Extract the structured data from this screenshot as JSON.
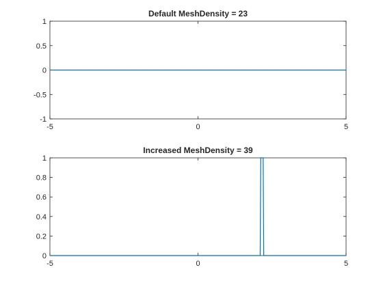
{
  "chart_data": [
    {
      "type": "line",
      "title": "Default MeshDensity = 23",
      "xlabel": "",
      "ylabel": "",
      "xlim": [
        -5,
        5
      ],
      "ylim": [
        -1,
        1
      ],
      "x_ticks": [
        -5,
        0,
        5
      ],
      "x_tick_labels": [
        "-5",
        "0",
        "5"
      ],
      "y_ticks": [
        -1,
        -0.5,
        0,
        0.5,
        1
      ],
      "y_tick_labels": [
        "-1",
        "-0.5",
        "0",
        "0.5",
        "1"
      ],
      "grid": false,
      "series_color": "#0072BD",
      "series": [
        {
          "x": [
            -5,
            5
          ],
          "y": [
            0,
            0
          ]
        }
      ]
    },
    {
      "type": "line",
      "title": "Increased MeshDensity = 39",
      "xlabel": "",
      "ylabel": "",
      "xlim": [
        -5,
        5
      ],
      "ylim": [
        0,
        1
      ],
      "x_ticks": [
        -5,
        0,
        5
      ],
      "x_tick_labels": [
        "-5",
        "0",
        "5"
      ],
      "y_ticks": [
        0,
        0.2,
        0.4,
        0.6,
        0.8,
        1
      ],
      "y_tick_labels": [
        "0",
        "0.2",
        "0.4",
        "0.6",
        "0.8",
        "1"
      ],
      "grid": false,
      "series_color": "#0072BD",
      "series": [
        {
          "x": [
            -5,
            2.1,
            2.12,
            2.2,
            2.22,
            5
          ],
          "y": [
            0,
            0,
            1,
            1,
            0,
            0
          ]
        }
      ]
    }
  ]
}
